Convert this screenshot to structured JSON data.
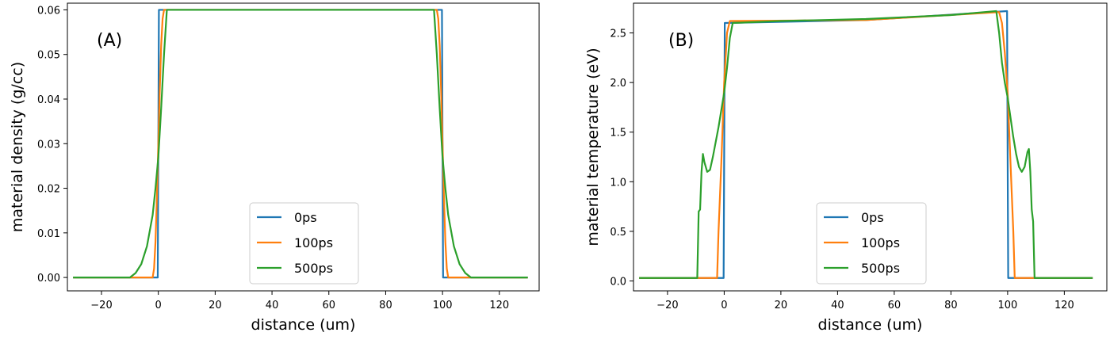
{
  "chart_data": [
    {
      "type": "line",
      "panel_label": "(A)",
      "xlabel": "distance (um)",
      "ylabel": "material density (g/cc)",
      "xlim": [
        -32,
        134
      ],
      "ylim": [
        -0.003,
        0.0615
      ],
      "xticks": [
        -20,
        0,
        20,
        40,
        60,
        80,
        100,
        120
      ],
      "yticks": [
        0.0,
        0.01,
        0.02,
        0.03,
        0.04,
        0.05,
        0.06
      ],
      "ytick_decimals": 2,
      "legend_position": "lower-center",
      "series": [
        {
          "name": "0ps",
          "color": "#1f77b4",
          "x": [
            -30,
            -0.2,
            0,
            0.2,
            99.8,
            100,
            100.2,
            130
          ],
          "y": [
            0,
            0,
            0.03,
            0.06,
            0.06,
            0.03,
            0,
            0
          ]
        },
        {
          "name": "100ps",
          "color": "#ff7f0e",
          "x": [
            -30,
            -2,
            -1.5,
            -1,
            -0.5,
            0,
            0.5,
            1,
            1.5,
            2,
            98,
            98.5,
            99,
            99.5,
            100,
            100.5,
            101,
            101.5,
            102,
            130
          ],
          "y": [
            0,
            0,
            0.002,
            0.008,
            0.018,
            0.03,
            0.042,
            0.052,
            0.058,
            0.06,
            0.06,
            0.058,
            0.052,
            0.042,
            0.03,
            0.018,
            0.008,
            0.002,
            0,
            0
          ]
        },
        {
          "name": "500ps",
          "color": "#2ca02c",
          "x": [
            -30,
            -10,
            -8,
            -6,
            -4,
            -2,
            -1,
            0,
            1,
            2,
            3,
            97,
            98,
            99,
            100,
            101,
            102,
            104,
            106,
            108,
            110,
            130
          ],
          "y": [
            0,
            0,
            0.001,
            0.003,
            0.007,
            0.014,
            0.02,
            0.027,
            0.038,
            0.05,
            0.06,
            0.06,
            0.05,
            0.038,
            0.027,
            0.02,
            0.014,
            0.007,
            0.003,
            0.001,
            0,
            0
          ]
        }
      ]
    },
    {
      "type": "line",
      "panel_label": "(B)",
      "xlabel": "distance (um)",
      "ylabel": "material temperature (eV)",
      "xlim": [
        -32,
        135
      ],
      "ylim": [
        -0.1,
        2.8
      ],
      "xticks": [
        -20,
        0,
        20,
        40,
        60,
        80,
        100,
        120
      ],
      "yticks": [
        0.0,
        0.5,
        1.0,
        1.5,
        2.0,
        2.5
      ],
      "ytick_decimals": 1,
      "legend_position": "lower-center",
      "series": [
        {
          "name": "0ps",
          "color": "#1f77b4",
          "x": [
            -30,
            -0.2,
            0,
            0.2,
            50,
            99.8,
            100,
            100.2,
            130
          ],
          "y": [
            0.03,
            0.03,
            1.3,
            2.6,
            2.63,
            2.72,
            1.3,
            0.03,
            0.03
          ]
        },
        {
          "name": "100ps",
          "color": "#ff7f0e",
          "x": [
            -30,
            -2.5,
            -2,
            -1,
            0,
            1,
            2,
            50,
            97,
            98,
            99,
            100,
            101,
            102,
            102.5,
            130
          ],
          "y": [
            0.03,
            0.03,
            0.5,
            1.2,
            2.0,
            2.5,
            2.62,
            2.63,
            2.71,
            2.6,
            2.3,
            1.9,
            1.2,
            0.5,
            0.03,
            0.03
          ]
        },
        {
          "name": "500ps",
          "color": "#2ca02c",
          "x": [
            -30,
            -9.5,
            -9,
            -8.5,
            -8,
            -7.5,
            -7,
            -6,
            -5,
            -4,
            -2,
            0,
            1,
            2,
            3,
            20,
            50,
            80,
            96,
            97,
            98,
            99,
            100,
            101,
            102,
            103,
            104,
            105,
            106,
            107,
            107.5,
            108,
            108.5,
            109,
            109.5,
            130
          ],
          "y": [
            0.03,
            0.03,
            0.7,
            0.72,
            1.1,
            1.28,
            1.2,
            1.1,
            1.12,
            1.25,
            1.55,
            1.9,
            2.15,
            2.45,
            2.6,
            2.62,
            2.64,
            2.68,
            2.72,
            2.5,
            2.2,
            2.0,
            1.85,
            1.65,
            1.45,
            1.28,
            1.15,
            1.1,
            1.15,
            1.3,
            1.33,
            1.1,
            0.72,
            0.6,
            0.03,
            0.03
          ]
        }
      ]
    }
  ]
}
